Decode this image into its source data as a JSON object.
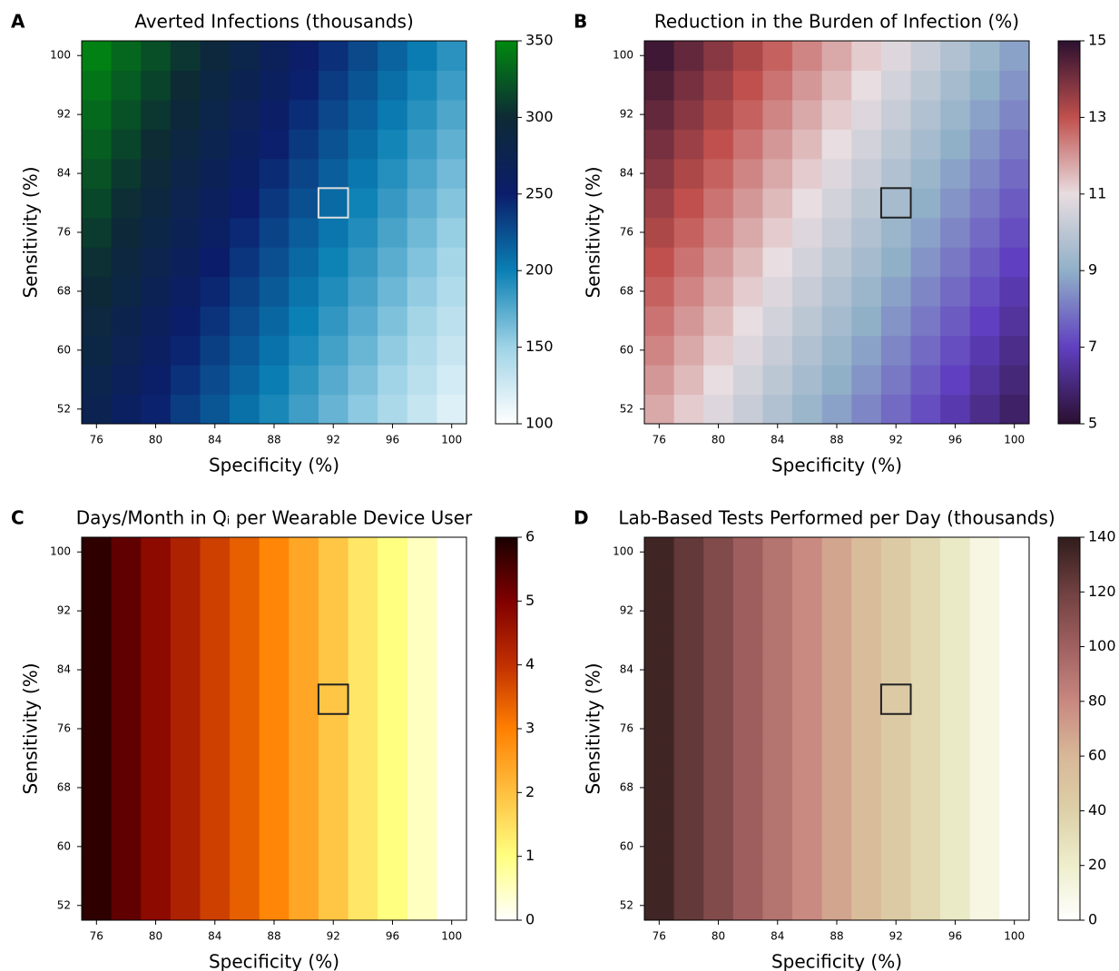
{
  "chart_data": [
    {
      "type": "heatmap",
      "label": "A",
      "title": "Averted Infections (thousands)",
      "xlabel": "Specificity (%)",
      "ylabel": "Sensitivity (%)",
      "x": [
        76,
        78,
        80,
        82,
        84,
        86,
        88,
        90,
        92,
        94,
        96,
        98,
        100
      ],
      "y": [
        52,
        56,
        60,
        64,
        68,
        72,
        76,
        80,
        84,
        88,
        92,
        96,
        100
      ],
      "xlim": [
        75,
        101
      ],
      "ylim": [
        50,
        102
      ],
      "xticks": [
        76,
        80,
        84,
        88,
        92,
        96,
        100
      ],
      "yticks": [
        52,
        60,
        68,
        76,
        84,
        92,
        100
      ],
      "z": [
        [
          273,
          260,
          247,
          234,
          221,
          208,
          195,
          182,
          169,
          156,
          143,
          130,
          117
        ],
        [
          279,
          266,
          253,
          240,
          227,
          214,
          201,
          188,
          175,
          162,
          149,
          136,
          123
        ],
        [
          285,
          272,
          259,
          246,
          233,
          220,
          207,
          194,
          181,
          168,
          155,
          142,
          129
        ],
        [
          291,
          278,
          265,
          252,
          239,
          226,
          213,
          200,
          187,
          174,
          161,
          148,
          135
        ],
        [
          297,
          284,
          271,
          258,
          245,
          232,
          219,
          206,
          193,
          180,
          167,
          154,
          141
        ],
        [
          303,
          290,
          277,
          264,
          251,
          238,
          225,
          212,
          199,
          186,
          173,
          160,
          147
        ],
        [
          309,
          296,
          283,
          270,
          257,
          244,
          231,
          218,
          205,
          192,
          179,
          166,
          153
        ],
        [
          315,
          302,
          289,
          276,
          263,
          250,
          237,
          224,
          211,
          198,
          185,
          172,
          159
        ],
        [
          321,
          308,
          295,
          282,
          269,
          256,
          243,
          230,
          217,
          204,
          191,
          178,
          165
        ],
        [
          327,
          314,
          301,
          288,
          275,
          262,
          249,
          236,
          223,
          210,
          197,
          184,
          171
        ],
        [
          333,
          320,
          307,
          294,
          281,
          268,
          255,
          242,
          229,
          216,
          203,
          190,
          177
        ],
        [
          339,
          326,
          313,
          300,
          287,
          274,
          261,
          248,
          235,
          222,
          209,
          196,
          183
        ],
        [
          345,
          332,
          319,
          306,
          293,
          280,
          267,
          254,
          241,
          228,
          215,
          202,
          189
        ]
      ],
      "zlim": [
        100,
        350
      ],
      "zticks": [
        100,
        150,
        200,
        250,
        300,
        350
      ],
      "colormap": [
        "#ffffff",
        "#9fd3e6",
        "#0a80b4",
        "#0b1d6b",
        "#0d2a35",
        "#008a10"
      ],
      "highlight": {
        "x": 92,
        "y": 80,
        "color": "#dddddd"
      }
    },
    {
      "type": "heatmap",
      "label": "B",
      "title": "Reduction in the Burden of Infection (%)",
      "xlabel": "Specificity (%)",
      "ylabel": "Sensitivity (%)",
      "x": [
        76,
        78,
        80,
        82,
        84,
        86,
        88,
        90,
        92,
        94,
        96,
        98,
        100
      ],
      "y": [
        52,
        56,
        60,
        64,
        68,
        72,
        76,
        80,
        84,
        88,
        92,
        96,
        100
      ],
      "xlim": [
        75,
        101
      ],
      "ylim": [
        50,
        102
      ],
      "xticks": [
        76,
        80,
        84,
        88,
        92,
        96,
        100
      ],
      "yticks": [
        52,
        60,
        68,
        76,
        84,
        92,
        100
      ],
      "z": [
        [
          11.75,
          11.25,
          10.75,
          10.25,
          9.75,
          9.25,
          8.75,
          8.25,
          7.75,
          7.25,
          6.75,
          6.25,
          5.75
        ],
        [
          12,
          11.5,
          11,
          10.5,
          10,
          9.5,
          9,
          8.5,
          8,
          7.5,
          7,
          6.5,
          6
        ],
        [
          12.25,
          11.75,
          11.25,
          10.75,
          10.25,
          9.75,
          9.25,
          8.75,
          8.25,
          7.75,
          7.25,
          6.75,
          6.25
        ],
        [
          12.5,
          12,
          11.5,
          11,
          10.5,
          10,
          9.5,
          9,
          8.5,
          8,
          7.5,
          7,
          6.5
        ],
        [
          12.75,
          12.25,
          11.75,
          11.25,
          10.75,
          10.25,
          9.75,
          9.25,
          8.75,
          8.25,
          7.75,
          7.25,
          6.75
        ],
        [
          13,
          12.5,
          12,
          11.5,
          11,
          10.5,
          10,
          9.5,
          9,
          8.5,
          8,
          7.5,
          7
        ],
        [
          13.25,
          12.75,
          12.25,
          11.75,
          11.25,
          10.75,
          10.25,
          9.75,
          9.25,
          8.75,
          8.25,
          7.75,
          7.25
        ],
        [
          13.5,
          13,
          12.5,
          12,
          11.5,
          11,
          10.5,
          10,
          9.5,
          9,
          8.5,
          8,
          7.5
        ],
        [
          13.75,
          13.25,
          12.75,
          12.25,
          11.75,
          11.25,
          10.75,
          10.25,
          9.75,
          9.25,
          8.75,
          8.25,
          7.75
        ],
        [
          14,
          13.5,
          13,
          12.5,
          12,
          11.5,
          11,
          10.5,
          10,
          9.5,
          9,
          8.5,
          8
        ],
        [
          14.25,
          13.75,
          13.25,
          12.75,
          12.25,
          11.75,
          11.25,
          10.75,
          10.25,
          9.75,
          9.25,
          8.75,
          8.25
        ],
        [
          14.5,
          14,
          13.5,
          13,
          12.5,
          12,
          11.5,
          11,
          10.5,
          10,
          9.5,
          9,
          8.5
        ],
        [
          14.75,
          14.25,
          13.75,
          13.25,
          12.75,
          12.25,
          11.75,
          11.25,
          10.75,
          10.25,
          9.75,
          9.25,
          8.75
        ]
      ],
      "zlim": [
        5,
        15
      ],
      "zticks": [
        5,
        7,
        9,
        11,
        13,
        15
      ],
      "colormap": [
        "#2a0f30",
        "#6040c0",
        "#90b0c8",
        "#e8dde0",
        "#c0504d",
        "#2b1030"
      ],
      "highlight": {
        "x": 92,
        "y": 80,
        "color": "#222222"
      }
    },
    {
      "type": "heatmap",
      "label": "C",
      "title": "Days/Month in Qᵢ per Wearable Device User",
      "xlabel": "Specificity (%)",
      "ylabel": "Sensitivity (%)",
      "x": [
        76,
        78,
        80,
        82,
        84,
        86,
        88,
        90,
        92,
        94,
        96,
        98,
        100
      ],
      "y": [
        52,
        56,
        60,
        64,
        68,
        72,
        76,
        80,
        84,
        88,
        92,
        96,
        100
      ],
      "xlim": [
        75,
        101
      ],
      "ylim": [
        50,
        102
      ],
      "xticks": [
        76,
        80,
        84,
        88,
        92,
        96,
        100
      ],
      "yticks": [
        52,
        60,
        68,
        76,
        84,
        92,
        100
      ],
      "z": [
        [
          5.8,
          5.3,
          4.8,
          4.3,
          3.8,
          3.4,
          2.9,
          2.4,
          1.9,
          1.4,
          1.0,
          0.5,
          0
        ],
        [
          5.8,
          5.3,
          4.8,
          4.3,
          3.8,
          3.4,
          2.9,
          2.4,
          1.9,
          1.4,
          1.0,
          0.5,
          0
        ],
        [
          5.8,
          5.3,
          4.8,
          4.3,
          3.8,
          3.4,
          2.9,
          2.4,
          1.9,
          1.4,
          1.0,
          0.5,
          0
        ],
        [
          5.8,
          5.3,
          4.8,
          4.3,
          3.8,
          3.4,
          2.9,
          2.4,
          1.9,
          1.4,
          1.0,
          0.5,
          0
        ],
        [
          5.8,
          5.3,
          4.8,
          4.3,
          3.8,
          3.4,
          2.9,
          2.4,
          1.9,
          1.4,
          1.0,
          0.5,
          0
        ],
        [
          5.8,
          5.3,
          4.8,
          4.3,
          3.8,
          3.4,
          2.9,
          2.4,
          1.9,
          1.4,
          1.0,
          0.5,
          0
        ],
        [
          5.8,
          5.3,
          4.8,
          4.3,
          3.8,
          3.4,
          2.9,
          2.4,
          1.9,
          1.4,
          1.0,
          0.5,
          0
        ],
        [
          5.8,
          5.3,
          4.8,
          4.3,
          3.8,
          3.4,
          2.9,
          2.4,
          1.9,
          1.4,
          1.0,
          0.5,
          0
        ],
        [
          5.8,
          5.3,
          4.8,
          4.3,
          3.8,
          3.4,
          2.9,
          2.4,
          1.9,
          1.4,
          1.0,
          0.5,
          0
        ],
        [
          5.8,
          5.3,
          4.8,
          4.3,
          3.8,
          3.4,
          2.9,
          2.4,
          1.9,
          1.4,
          1.0,
          0.5,
          0
        ],
        [
          5.8,
          5.3,
          4.8,
          4.3,
          3.8,
          3.4,
          2.9,
          2.4,
          1.9,
          1.4,
          1.0,
          0.5,
          0
        ],
        [
          5.8,
          5.3,
          4.8,
          4.3,
          3.8,
          3.4,
          2.9,
          2.4,
          1.9,
          1.4,
          1.0,
          0.5,
          0
        ],
        [
          5.8,
          5.3,
          4.8,
          4.3,
          3.8,
          3.4,
          2.9,
          2.4,
          1.9,
          1.4,
          1.0,
          0.5,
          0
        ]
      ],
      "zlim": [
        0,
        6
      ],
      "zticks": [
        0,
        1,
        2,
        3,
        4,
        5,
        6
      ],
      "colormap": [
        "#ffffff",
        "#ffff80",
        "#ffc040",
        "#ff8000",
        "#c03000",
        "#800000",
        "#1a0000"
      ],
      "highlight": {
        "x": 92,
        "y": 80,
        "color": "#222222"
      }
    },
    {
      "type": "heatmap",
      "label": "D",
      "title": "Lab-Based Tests Performed per Day (thousands)",
      "xlabel": "Specificity (%)",
      "ylabel": "Sensitivity (%)",
      "x": [
        76,
        78,
        80,
        82,
        84,
        86,
        88,
        90,
        92,
        94,
        96,
        98,
        100
      ],
      "y": [
        52,
        56,
        60,
        64,
        68,
        72,
        76,
        80,
        84,
        88,
        92,
        96,
        100
      ],
      "xlim": [
        75,
        101
      ],
      "ylim": [
        50,
        102
      ],
      "xticks": [
        76,
        80,
        84,
        88,
        92,
        96,
        100
      ],
      "yticks": [
        52,
        60,
        68,
        76,
        84,
        92,
        100
      ],
      "z": [
        [
          135,
          124,
          113,
          101,
          90,
          79,
          68,
          56,
          45,
          34,
          23,
          11,
          0
        ],
        [
          135,
          124,
          113,
          101,
          90,
          79,
          68,
          56,
          45,
          34,
          23,
          11,
          0
        ],
        [
          135,
          124,
          113,
          101,
          90,
          79,
          68,
          56,
          45,
          34,
          23,
          11,
          0
        ],
        [
          135,
          124,
          113,
          101,
          90,
          79,
          68,
          56,
          45,
          34,
          23,
          11,
          0
        ],
        [
          135,
          124,
          113,
          101,
          90,
          79,
          68,
          56,
          45,
          34,
          23,
          11,
          0
        ],
        [
          135,
          124,
          113,
          101,
          90,
          79,
          68,
          56,
          45,
          34,
          23,
          11,
          0
        ],
        [
          135,
          124,
          113,
          101,
          90,
          79,
          68,
          56,
          45,
          34,
          23,
          11,
          0
        ],
        [
          135,
          124,
          113,
          101,
          90,
          79,
          68,
          56,
          45,
          34,
          23,
          11,
          0
        ],
        [
          135,
          124,
          113,
          101,
          90,
          79,
          68,
          56,
          45,
          34,
          23,
          11,
          0
        ],
        [
          135,
          124,
          113,
          101,
          90,
          79,
          68,
          56,
          45,
          34,
          23,
          11,
          0
        ],
        [
          135,
          124,
          113,
          101,
          90,
          79,
          68,
          56,
          45,
          34,
          23,
          11,
          0
        ],
        [
          135,
          124,
          113,
          101,
          90,
          79,
          68,
          56,
          45,
          34,
          23,
          11,
          0
        ],
        [
          135,
          124,
          113,
          101,
          90,
          79,
          68,
          56,
          45,
          34,
          23,
          11,
          0
        ]
      ],
      "zlim": [
        0,
        140
      ],
      "zticks": [
        0,
        20,
        40,
        60,
        80,
        100,
        120,
        140
      ],
      "colormap": [
        "#ffffff",
        "#eeeecc",
        "#ddd0a8",
        "#d8b898",
        "#c88880",
        "#a06060",
        "#704040",
        "#301c1c"
      ],
      "highlight": {
        "x": 92,
        "y": 80,
        "color": "#222222"
      }
    }
  ]
}
